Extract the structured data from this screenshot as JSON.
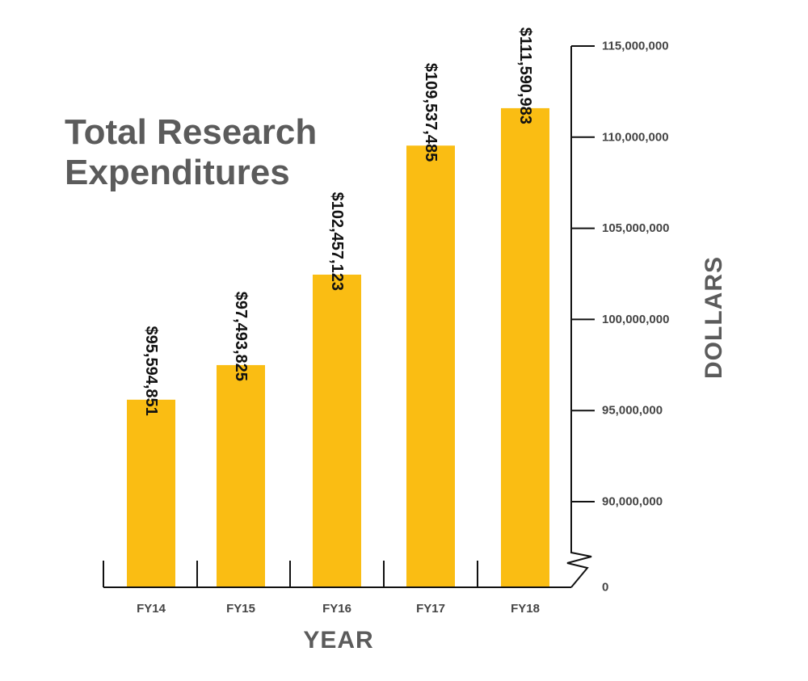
{
  "chart_data": {
    "type": "bar",
    "title": "Total Research Expenditures",
    "title_lines": [
      "Total Research",
      "Expenditures"
    ],
    "xlabel": "YEAR",
    "ylabel": "DOLLARS",
    "categories": [
      "FY14",
      "FY15",
      "FY16",
      "FY17",
      "FY18"
    ],
    "values": [
      95594851,
      97493825,
      102457123,
      109537485,
      111590983
    ],
    "data_labels": [
      "$95,594,851",
      "$97,493,825",
      "$102,457,123",
      "$109,537,485",
      "$111,590,983"
    ],
    "y_ticks": [
      {
        "value": 115000000,
        "label": "115,000,000"
      },
      {
        "value": 110000000,
        "label": "110,000,000"
      },
      {
        "value": 105000000,
        "label": "105,000,000"
      },
      {
        "value": 100000000,
        "label": "100,000,000"
      },
      {
        "value": 95000000,
        "label": "95,000,000"
      },
      {
        "value": 90000000,
        "label": "90,000,000"
      },
      {
        "value": 0,
        "label": "0"
      }
    ],
    "ylim": [
      0,
      115000000
    ],
    "axis_break": true,
    "y_axis_position": "right",
    "grid": false,
    "colors": {
      "bar": "#FABD13",
      "axis": "#111111",
      "title": "#5b5b5b",
      "label": "#444444"
    }
  }
}
